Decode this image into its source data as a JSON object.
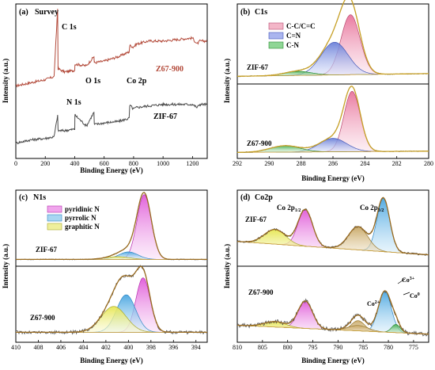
{
  "figure": {
    "panels": [
      {
        "tag": "(a)",
        "title": "Survey",
        "xlabel": "Binding Energy  (eV)",
        "ylabel": "Intensity (a.u.)",
        "xticks": [
          "0",
          "200",
          "400",
          "600",
          "800",
          "1000",
          "1200"
        ],
        "annotations": [
          "C 1s",
          "N 1s",
          "O 1s",
          "Co 2p"
        ],
        "series_labels": [
          "Z67-900",
          "ZIF-67"
        ]
      },
      {
        "tag": "(b)",
        "title": "C1s",
        "xlabel": "Binding Energy  (eV)",
        "ylabel": "Intensity (a.u.)",
        "xticks": [
          "292",
          "290",
          "288",
          "286",
          "284",
          "282",
          "280"
        ],
        "legend": [
          "C-C/C=C",
          "C=N",
          "C-N"
        ],
        "series_labels": [
          "ZIF-67",
          "Z67-900"
        ]
      },
      {
        "tag": "(c)",
        "title": "N1s",
        "xlabel": "Binding Energy  (eV)",
        "ylabel": "Intensity (a.u.)",
        "xticks": [
          "410",
          "408",
          "406",
          "404",
          "402",
          "400",
          "398",
          "396",
          "394"
        ],
        "legend": [
          "pyridinic N",
          "pyrrolic N",
          "graphitic N"
        ],
        "series_labels": [
          "ZIF-67",
          "Z67-900"
        ]
      },
      {
        "tag": "(d)",
        "title": "Co2p",
        "xlabel": "Binding Energy  (eV)",
        "ylabel": "Intensity (a.u.)",
        "xticks": [
          "810",
          "805",
          "800",
          "795",
          "790",
          "785",
          "780",
          "775"
        ],
        "annotations": [
          "Co 2p1/2",
          "Co 2p3/2",
          "Co2+",
          "Co3+",
          "Co0"
        ],
        "series_labels": [
          "ZIF-67",
          "Z67-900"
        ]
      }
    ]
  },
  "colors": {
    "survey_top": "#b34a3a",
    "survey_bottom": "#4a4a4a",
    "raw": "#555555",
    "envelope": "#c9a227",
    "envelope_c": "#9a6b1f",
    "background": "#d4a84a",
    "pink": "#e8739a",
    "blue": "#6a7fd8",
    "green": "#3aaa45",
    "magenta": "#e05ad8",
    "skyblue": "#66b8e8",
    "yellow": "#e6e650",
    "tan": "#c4a15a"
  },
  "chart_data": [
    {
      "type": "line",
      "title": "Survey",
      "xlabel": "Binding Energy  (eV)",
      "ylabel": "Intensity (a.u.)",
      "xlim": [
        0,
        1300
      ],
      "ylim": [
        0,
        100
      ],
      "series": [
        {
          "name": "Z67-900",
          "x": [
            0,
            100,
            200,
            260,
            284,
            290,
            330,
            400,
            403,
            480,
            531,
            535,
            600,
            700,
            770,
            781,
            796,
            820,
            900,
            1000,
            1100,
            1200,
            1230,
            1250,
            1300
          ],
          "y": [
            47,
            49,
            51,
            53,
            97,
            58,
            56,
            57,
            61,
            60,
            66,
            62,
            63,
            66,
            69,
            73,
            72,
            74,
            76,
            76,
            77,
            78,
            74,
            76,
            76
          ]
        },
        {
          "name": "ZIF-67",
          "x": [
            0,
            100,
            200,
            260,
            284,
            290,
            330,
            400,
            403,
            480,
            531,
            535,
            600,
            700,
            770,
            781,
            796,
            820,
            900,
            1000,
            1100,
            1200,
            1230,
            1250,
            1300
          ],
          "y": [
            10,
            12,
            13,
            14,
            28,
            18,
            18,
            19,
            28,
            21,
            30,
            22,
            23,
            24,
            26,
            34,
            32,
            33,
            34,
            35,
            35,
            35,
            33,
            35,
            35
          ]
        }
      ]
    },
    {
      "type": "area",
      "title": "C1s",
      "xlabel": "Binding Energy  (eV)",
      "xlim": [
        292,
        280
      ],
      "series": [
        {
          "name": "C-C/C=C",
          "center": [
            284.9,
            284.8
          ],
          "fwhm": [
            1.4,
            1.2
          ],
          "height": [
            0.88,
            0.94
          ]
        },
        {
          "name": "C=N",
          "center": [
            285.9,
            286.0
          ],
          "fwhm": [
            2.0,
            2.0
          ],
          "height": [
            0.48,
            0.21
          ]
        },
        {
          "name": "C-N",
          "center": [
            288.2,
            289.0
          ],
          "fwhm": [
            2.0,
            2.2
          ],
          "height": [
            0.06,
            0.1
          ]
        }
      ],
      "samples": [
        "ZIF-67",
        "Z67-900"
      ]
    },
    {
      "type": "area",
      "title": "N1s",
      "xlabel": "Binding Energy  (eV)",
      "xlim": [
        410,
        393
      ],
      "series": [
        {
          "name": "pyridinic N",
          "center": [
            398.6,
            398.7
          ],
          "fwhm": [
            1.5,
            1.5
          ],
          "height": [
            0.95,
            0.8
          ]
        },
        {
          "name": "pyrrolic N",
          "center": [
            400.0,
            400.2
          ],
          "fwhm": [
            2.0,
            2.0
          ],
          "height": [
            0.11,
            0.55
          ]
        },
        {
          "name": "graphitic N",
          "center": [
            401.0,
            401.3
          ],
          "fwhm": [
            2.5,
            2.6
          ],
          "height": [
            0.04,
            0.38
          ]
        }
      ],
      "samples": [
        "ZIF-67",
        "Z67-900"
      ]
    },
    {
      "type": "area",
      "title": "Co2p",
      "xlabel": "Binding Energy  (eV)",
      "xlim": [
        810,
        772
      ],
      "series": [
        {
          "name": "Co 2p3/2",
          "center": [
            781.0,
            780.7
          ],
          "fwhm": [
            3.0,
            3.0
          ],
          "height": [
            0.8,
            0.6
          ]
        },
        {
          "name": "Co 2p1/2",
          "center": [
            796.5,
            796.5
          ],
          "fwhm": [
            3.4,
            3.4
          ],
          "height": [
            0.55,
            0.4
          ]
        },
        {
          "name": "Co0",
          "center": [
            null,
            778.5
          ],
          "fwhm": [
            null,
            2.0
          ],
          "height": [
            null,
            0.12
          ]
        },
        {
          "name": "Co2+",
          "center": [
            null,
            786.0
          ],
          "fwhm": [
            null,
            3.0
          ],
          "height": [
            null,
            0.15
          ]
        }
      ],
      "samples": [
        "ZIF-67",
        "Z67-900"
      ]
    }
  ]
}
